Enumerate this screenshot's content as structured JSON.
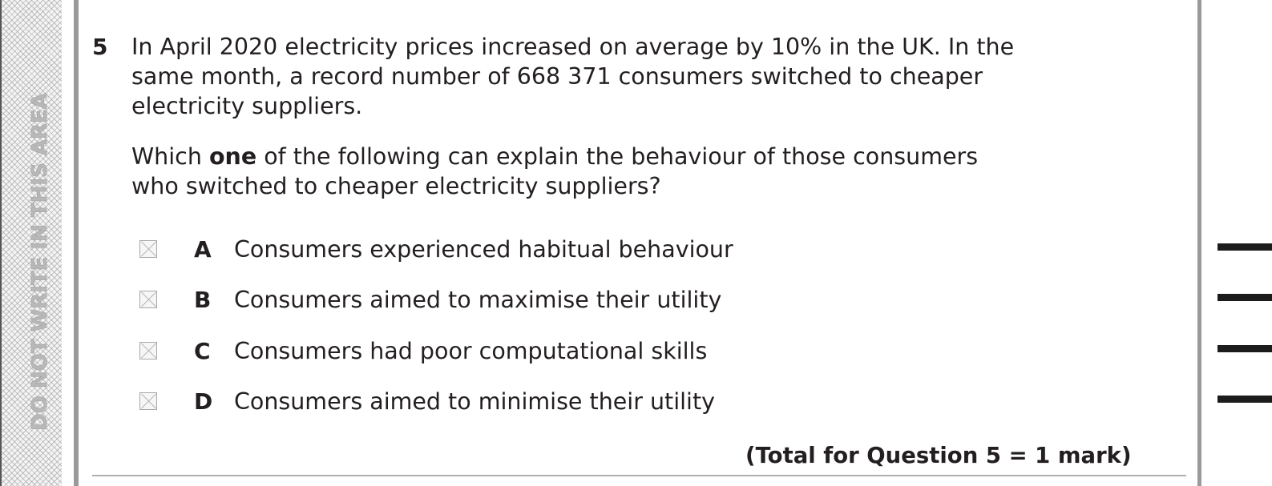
{
  "margin_notice": "DO NOT WRITE IN THIS AREA",
  "question": {
    "number": "5",
    "stem": "In April 2020 electricity prices increased on average by 10% in the UK. In the same month, a record number of 668 371 consumers switched to cheaper electricity suppliers.",
    "prompt_before": "Which ",
    "prompt_emphasis": "one",
    "prompt_after": " of the following can explain the behaviour of those consumers who switched to cheaper electricity suppliers?",
    "options": [
      {
        "letter": "A",
        "text": "Consumers experienced habitual behaviour"
      },
      {
        "letter": "B",
        "text": "Consumers aimed to maximise their utility"
      },
      {
        "letter": "C",
        "text": "Consumers had poor computational skills"
      },
      {
        "letter": "D",
        "text": "Consumers aimed to minimise their utility"
      }
    ],
    "total": "(Total for Question 5 = 1 mark)"
  }
}
